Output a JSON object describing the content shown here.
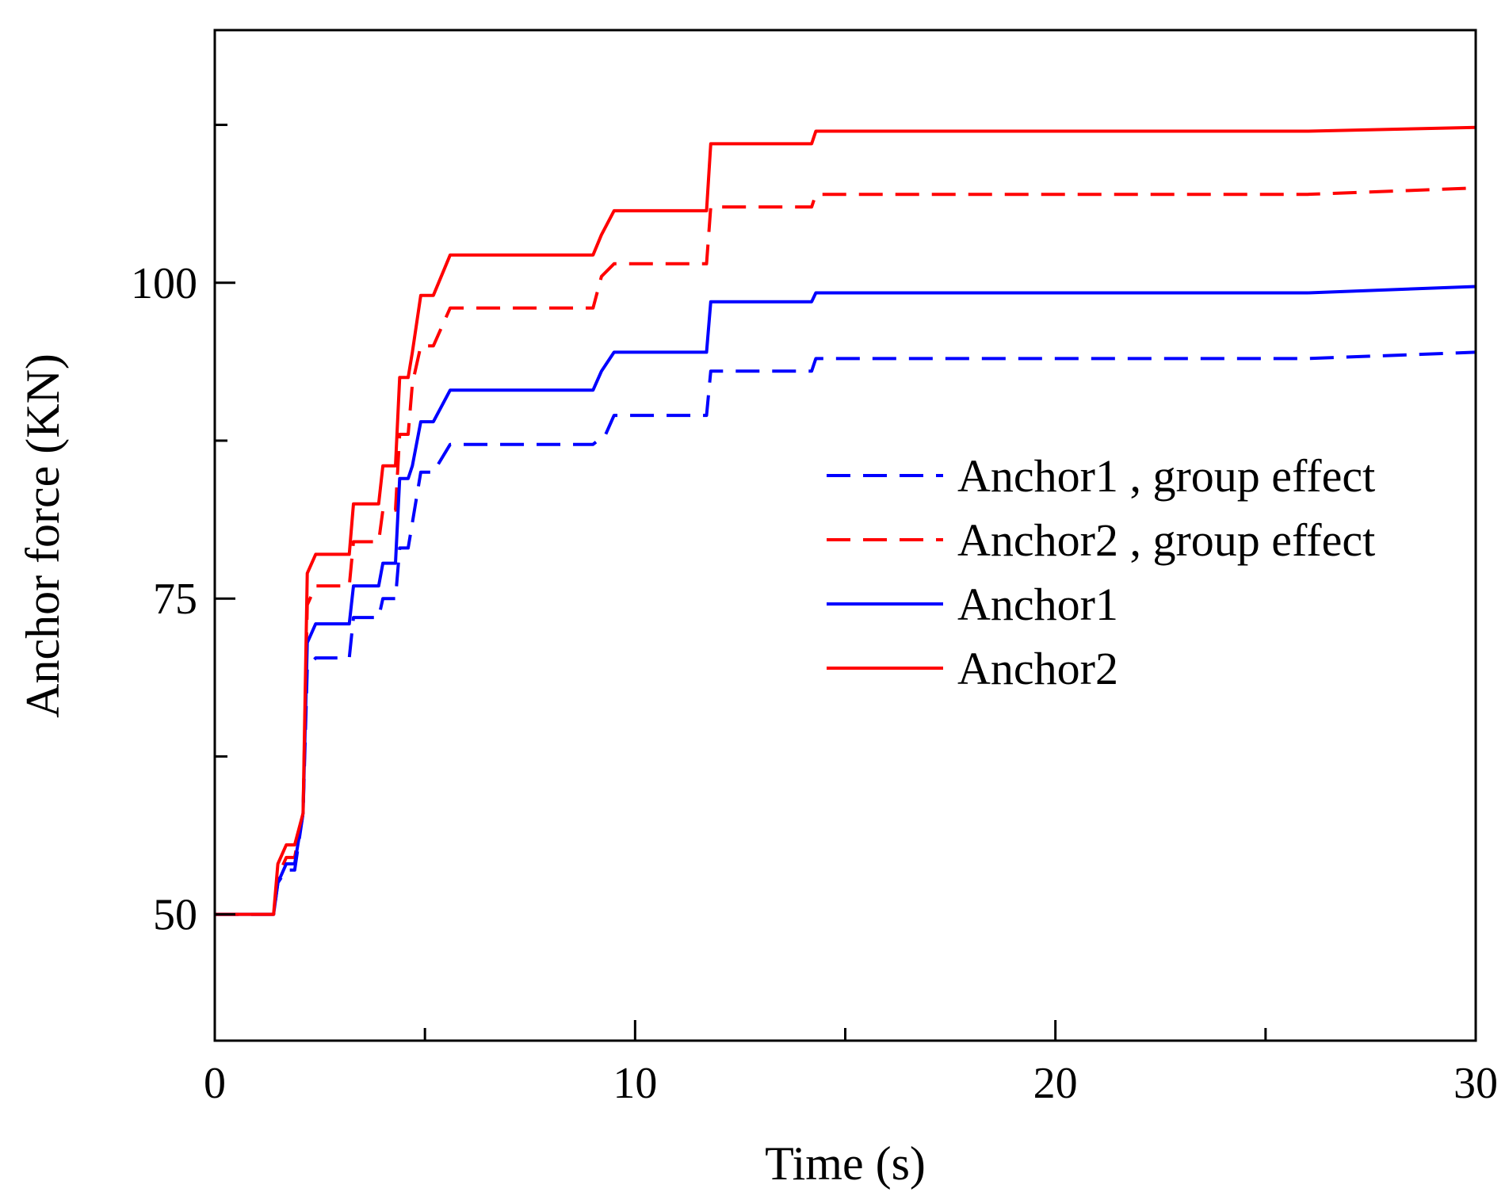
{
  "chart_data": {
    "type": "line",
    "title": "",
    "xlabel": "Time (s)",
    "ylabel": "Anchor force (KN)",
    "xlim": [
      0,
      30
    ],
    "ylim": [
      40,
      120
    ],
    "xticks_major": [
      0,
      10,
      20,
      30
    ],
    "xticks_major_labels": [
      "0",
      "10",
      "20",
      "30"
    ],
    "xticks_minor": [
      5,
      15,
      25
    ],
    "yticks_major": [
      50,
      75,
      100
    ],
    "yticks_major_labels": [
      "50",
      "75",
      "100"
    ],
    "yticks_minor": [
      62.5,
      87.5,
      112.5
    ],
    "grid": false,
    "legend_position": "center-right",
    "series": [
      {
        "name": "Anchor1 , group effect",
        "color": "#0000ff",
        "style": "dashed",
        "x": [
          0,
          0.9,
          1.4,
          1.5,
          1.7,
          1.9,
          2.1,
          2.2,
          2.4,
          3.2,
          3.3,
          3.9,
          4.0,
          4.3,
          4.4,
          4.6,
          4.7,
          4.9,
          5.2,
          5.6,
          9.0,
          9.3,
          9.5,
          11.7,
          11.8,
          14.2,
          14.3,
          26.0,
          30
        ],
        "y": [
          50,
          50,
          50,
          52.5,
          53.5,
          53.5,
          58,
          69.5,
          70.3,
          70.3,
          73.5,
          73.5,
          75.0,
          75.0,
          79,
          79,
          81,
          85.0,
          85.0,
          87.2,
          87.2,
          88,
          89.5,
          89.5,
          93,
          93,
          94,
          94,
          94.5
        ]
      },
      {
        "name": "Anchor2 , group effect",
        "color": "#ff0000",
        "style": "dashed",
        "x": [
          0,
          0.9,
          1.4,
          1.5,
          1.7,
          1.9,
          2.1,
          2.2,
          2.4,
          3.2,
          3.3,
          3.9,
          4.0,
          4.3,
          4.4,
          4.6,
          4.7,
          4.9,
          5.2,
          5.6,
          9.0,
          9.2,
          9.5,
          11.7,
          11.8,
          14.2,
          14.3,
          26.0,
          30
        ],
        "y": [
          50,
          50,
          50,
          53,
          54.5,
          54.5,
          58,
          74.5,
          76,
          76,
          79.5,
          79.5,
          82,
          82,
          88,
          88,
          92,
          95,
          95,
          98,
          98,
          100.5,
          101.5,
          101.5,
          106,
          106,
          107,
          107,
          107.5
        ]
      },
      {
        "name": "Anchor1",
        "color": "#0000ff",
        "style": "solid",
        "x": [
          0,
          1.3,
          1.4,
          1.5,
          1.7,
          1.9,
          2.1,
          2.2,
          2.4,
          3.2,
          3.3,
          3.9,
          4.0,
          4.3,
          4.4,
          4.6,
          4.7,
          4.9,
          5.2,
          5.6,
          9.0,
          9.2,
          9.5,
          11.7,
          11.8,
          14.2,
          14.3,
          26.0,
          30
        ],
        "y": [
          50,
          50,
          50,
          52.5,
          54,
          54,
          58,
          71.5,
          73,
          73,
          76,
          76,
          77.8,
          77.8,
          84.5,
          84.5,
          85.5,
          89,
          89,
          91.5,
          91.5,
          93,
          94.5,
          94.5,
          98.5,
          98.5,
          99.2,
          99.2,
          99.7
        ]
      },
      {
        "name": "Anchor2",
        "color": "#ff0000",
        "style": "solid",
        "x": [
          0,
          1.3,
          1.4,
          1.5,
          1.7,
          1.9,
          2.1,
          2.2,
          2.4,
          3.2,
          3.3,
          3.9,
          4.0,
          4.3,
          4.4,
          4.6,
          4.7,
          4.9,
          5.2,
          5.6,
          9.0,
          9.2,
          9.5,
          11.7,
          11.8,
          14.2,
          14.3,
          26.0,
          30
        ],
        "y": [
          50,
          50,
          50,
          54,
          55.5,
          55.5,
          58,
          77,
          78.5,
          78.5,
          82.5,
          82.5,
          85.5,
          85.5,
          92.5,
          92.5,
          94.5,
          99,
          99,
          102.2,
          102.2,
          103.8,
          105.7,
          105.7,
          111,
          111,
          112,
          112,
          112.3
        ]
      }
    ]
  }
}
